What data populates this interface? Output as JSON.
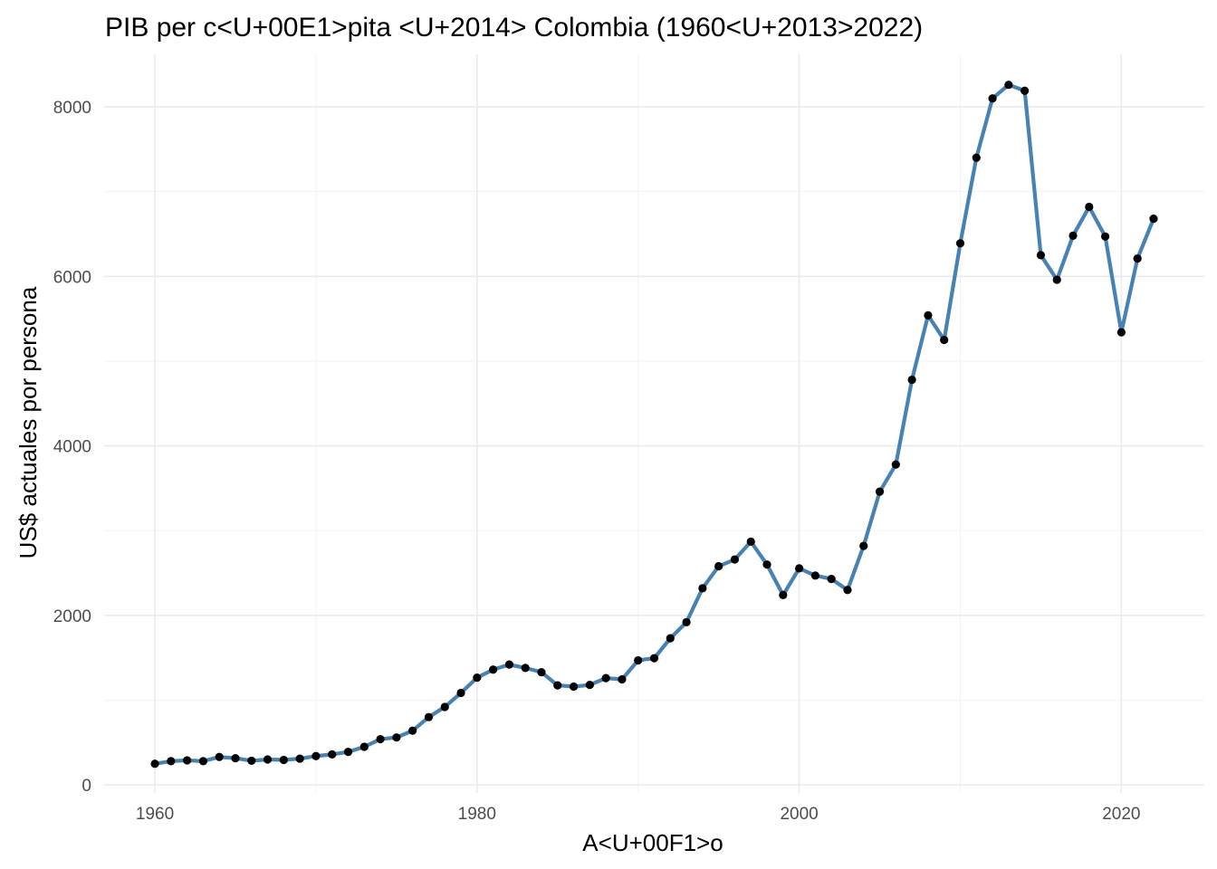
{
  "chart_data": {
    "type": "line",
    "title": "PIB per c<U+00E1>pita <U+2014> Colombia (1960<U+2013>2022)",
    "xlabel": "A<U+00F1>o",
    "ylabel": "US$ actuales por persona",
    "xlim": [
      1956.85,
      2025.15
    ],
    "ylim": [
      -95,
      8620
    ],
    "x_ticks": [
      1960,
      1980,
      2000,
      2020
    ],
    "x_minor_ticks": [
      1970,
      1990,
      2010
    ],
    "y_ticks": [
      0,
      2000,
      4000,
      6000,
      8000
    ],
    "y_minor_ticks": [
      1000,
      3000,
      5000,
      7000
    ],
    "grid": true,
    "line_color": "#4682b4",
    "point_color": "#000000",
    "series": [
      {
        "x": [
          1960,
          1961,
          1962,
          1963,
          1964,
          1965,
          1966,
          1967,
          1968,
          1969,
          1970,
          1971,
          1972,
          1973,
          1974,
          1975,
          1976,
          1977,
          1978,
          1979,
          1980,
          1981,
          1982,
          1983,
          1984,
          1985,
          1986,
          1987,
          1988,
          1989,
          1990,
          1991,
          1992,
          1993,
          1994,
          1995,
          1996,
          1997,
          1998,
          1999,
          2000,
          2001,
          2002,
          2003,
          2004,
          2005,
          2006,
          2007,
          2008,
          2009,
          2010,
          2011,
          2012,
          2013,
          2014,
          2015,
          2016,
          2017,
          2018,
          2019,
          2020,
          2021,
          2022
        ],
        "y": [
          250,
          280,
          290,
          280,
          330,
          315,
          285,
          300,
          295,
          310,
          340,
          360,
          390,
          450,
          540,
          560,
          640,
          800,
          920,
          1085,
          1265,
          1360,
          1420,
          1380,
          1330,
          1175,
          1160,
          1180,
          1260,
          1245,
          1470,
          1495,
          1730,
          1920,
          2320,
          2580,
          2660,
          2870,
          2600,
          2240,
          2555,
          2470,
          2430,
          2300,
          2820,
          3460,
          3780,
          4780,
          5540,
          5250,
          6390,
          7400,
          8100,
          8260,
          8190,
          6250,
          5960,
          6480,
          6820,
          6470,
          5340,
          6210,
          6680
        ]
      }
    ]
  }
}
